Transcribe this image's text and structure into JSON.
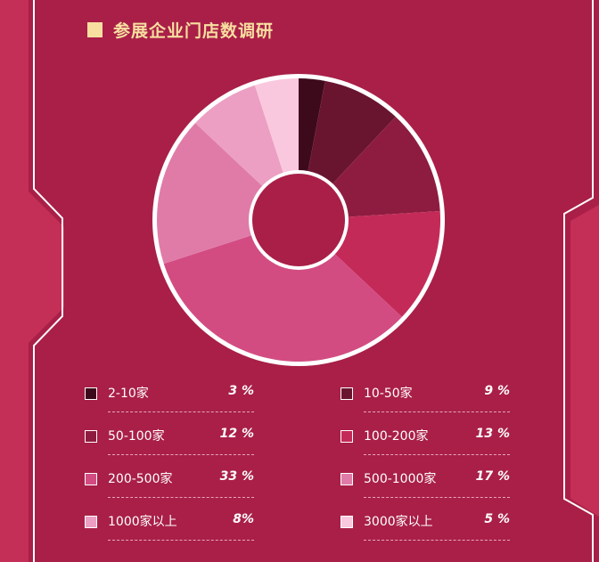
{
  "header": {
    "title": "参展企业门店数调研"
  },
  "colors": {
    "background": "#a91f48",
    "panel_side": "#c42f57",
    "frame_line": "#ffffff",
    "title": "#f7dfa0"
  },
  "chart_data": {
    "type": "pie",
    "title": "参展企业门店数调研",
    "donut": true,
    "categories": [
      "2-10家",
      "10-50家",
      "50-100家",
      "100-200家",
      "200-500家",
      "500-1000家",
      "1000家以上",
      "3000家以上"
    ],
    "values": [
      3,
      9,
      12,
      13,
      33,
      17,
      8,
      5
    ],
    "labels": [
      "3 %",
      "9 %",
      "12 %",
      "13 %",
      "33 %",
      "17 %",
      "8%",
      "5 %"
    ],
    "colors": [
      "#3d0a1c",
      "#6a1530",
      "#8e1c40",
      "#c42a58",
      "#d24c82",
      "#e07ba8",
      "#ec9fc2",
      "#fac8de"
    ],
    "legend": "bottom"
  }
}
